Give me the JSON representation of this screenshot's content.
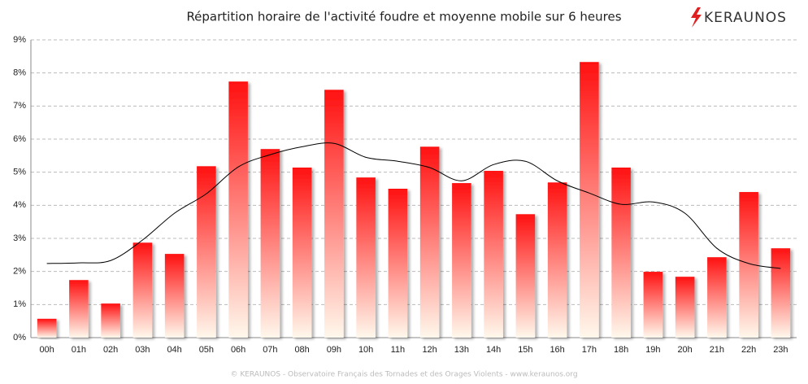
{
  "chart_data": {
    "type": "bar",
    "title": "Répartition horaire de l'activité foudre et moyenne mobile sur 6 heures",
    "logo": "KERAUNOS",
    "footer": "© KERAUNOS - Observatoire Français des Tornades et des Orages Violents - www.keraunos.org",
    "categories": [
      "00h",
      "01h",
      "02h",
      "03h",
      "04h",
      "05h",
      "06h",
      "07h",
      "08h",
      "09h",
      "10h",
      "11h",
      "12h",
      "13h",
      "14h",
      "15h",
      "16h",
      "17h",
      "18h",
      "19h",
      "20h",
      "21h",
      "22h",
      "23h"
    ],
    "series": [
      {
        "type": "bar",
        "color": "#ff1010",
        "values": [
          0.57,
          1.74,
          1.03,
          2.87,
          2.53,
          5.18,
          7.74,
          5.7,
          5.14,
          7.49,
          4.84,
          4.5,
          5.77,
          4.67,
          5.04,
          3.73,
          4.69,
          8.33,
          5.14,
          1.99,
          1.84,
          2.43,
          4.4,
          2.7
        ]
      },
      {
        "type": "line",
        "color": "#000000",
        "values": [
          2.24,
          2.26,
          2.33,
          2.95,
          3.76,
          4.35,
          5.16,
          5.53,
          5.77,
          5.87,
          5.45,
          5.33,
          5.14,
          4.74,
          5.23,
          5.33,
          4.74,
          4.37,
          4.03,
          4.1,
          3.76,
          2.7,
          2.24,
          2.09
        ]
      }
    ],
    "ylim": [
      0,
      9
    ],
    "yticks": [
      {
        "value": 0,
        "label": "0%"
      },
      {
        "value": 1,
        "label": "1%"
      },
      {
        "value": 2,
        "label": "2%"
      },
      {
        "value": 3,
        "label": "3%"
      },
      {
        "value": 4,
        "label": "4%"
      },
      {
        "value": 5,
        "label": "5%"
      },
      {
        "value": 6,
        "label": "6%"
      },
      {
        "value": 7,
        "label": "7%"
      },
      {
        "value": 8,
        "label": "8%"
      },
      {
        "value": 9,
        "label": "9%"
      }
    ],
    "grid": true
  }
}
